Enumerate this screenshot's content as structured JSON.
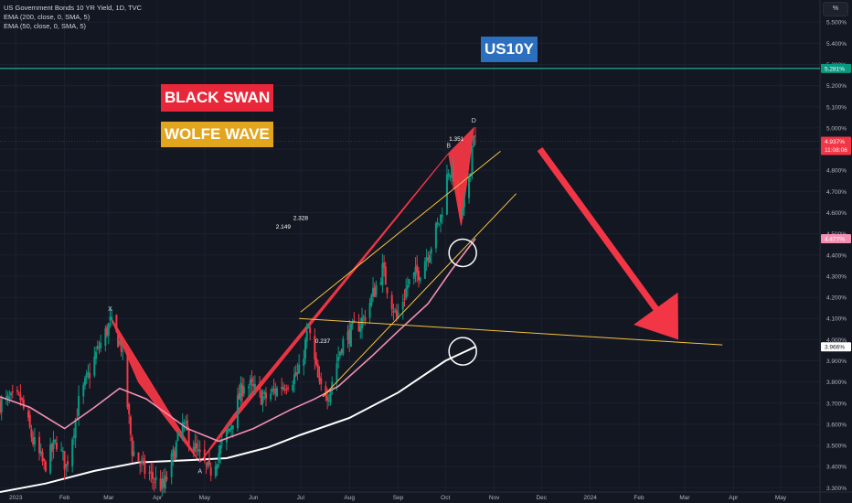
{
  "header": {
    "title": "US Government Bonds 10 YR Yield, 1D, TVC",
    "indicator1": "EMA (200, close, 0, SMA, 5)",
    "indicator2": "EMA (50, close, 0, SMA, 5)",
    "scale_mode": "%"
  },
  "annotations": {
    "us10y": "US10Y",
    "black_swan": "BLACK SWAN",
    "wolfe_wave": "WOLFE WAVE",
    "pivots": [
      {
        "label": "X",
        "date": "2023-03-02",
        "y": 4.11
      },
      {
        "label": "A",
        "date": "2023-04-28",
        "y": 3.42
      },
      {
        "label": "B",
        "date": "2023-10-03",
        "y": 4.88
      },
      {
        "label": "D",
        "date": "2023-10-19",
        "y": 5.0
      }
    ],
    "fib_labels": [
      {
        "text": "2.328",
        "date": "2023-07-01",
        "y": 4.565
      },
      {
        "text": "2.149",
        "date": "2023-06-20",
        "y": 4.525
      },
      {
        "text": "1.351",
        "date": "2023-10-08",
        "y": 4.94
      },
      {
        "text": "0.237",
        "date": "2023-07-15",
        "y": 3.985
      }
    ]
  },
  "price_labels": {
    "horizontal_line": {
      "value": 5.281,
      "text": "5.281%",
      "color": "#089981"
    },
    "current": {
      "value": 4.937,
      "text": "4.937%",
      "countdown": "11:08:06",
      "color": "#f23645"
    },
    "ema50": {
      "value": 4.477,
      "text": "4.477%",
      "color": "#f48fb1"
    },
    "ema200": {
      "value": 3.966,
      "text": "3.966%",
      "color": "#ffffff"
    }
  },
  "colors": {
    "background": "#131722",
    "up_candle": "#089981",
    "down_candle": "#f23645",
    "ema50": "#f48fb1",
    "ema200": "#ffffff",
    "black_swan_fill": "#f23645",
    "wolfe_lines": "#f5c242",
    "arrow": "#f23645"
  },
  "chart_data": {
    "type": "candlestick",
    "symbol": "US10Y",
    "title": "US Government Bonds 10 YR Yield, 1D, TVC",
    "x_tick_labels": [
      "2023",
      "Feb",
      "Mar",
      "Apr",
      "May",
      "Jun",
      "Jul",
      "Aug",
      "Sep",
      "Oct",
      "Nov",
      "Dec",
      "2024",
      "Feb",
      "Mar",
      "Apr",
      "May"
    ],
    "x_tick_dates": [
      "2023-01-01",
      "2023-02-01",
      "2023-03-01",
      "2023-04-01",
      "2023-05-01",
      "2023-06-01",
      "2023-07-01",
      "2023-08-01",
      "2023-09-01",
      "2023-10-01",
      "2023-11-01",
      "2023-12-01",
      "2024-01-01",
      "2024-02-01",
      "2024-03-01",
      "2024-04-01",
      "2024-05-01"
    ],
    "x_range": [
      "2022-12-22",
      "2024-05-26"
    ],
    "y_ticks": [
      3.3,
      3.4,
      3.5,
      3.6,
      3.7,
      3.8,
      3.9,
      4.0,
      4.1,
      4.2,
      4.3,
      4.4,
      4.5,
      4.6,
      4.7,
      4.8,
      4.9,
      5.0,
      5.1,
      5.2,
      5.3,
      5.4,
      5.5
    ],
    "y_tick_labels": [
      "3.300%",
      "3.400%",
      "3.500%",
      "3.600%",
      "3.700%",
      "3.800%",
      "3.900%",
      "4.000%",
      "4.100%",
      "4.200%",
      "4.300%",
      "4.400%",
      "4.500%",
      "4.600%",
      "4.700%",
      "4.800%",
      "4.900%",
      "5.000%",
      "5.100%",
      "5.200%",
      "5.300%",
      "5.400%",
      "5.500%"
    ],
    "ylim": [
      3.28,
      5.57
    ],
    "y_unit": "%",
    "ohlc_anchor_closes": [
      [
        "2022-12-22",
        3.7
      ],
      [
        "2023-01-04",
        3.72
      ],
      [
        "2023-01-12",
        3.52
      ],
      [
        "2023-01-19",
        3.4
      ],
      [
        "2023-01-27",
        3.52
      ],
      [
        "2023-02-02",
        3.4
      ],
      [
        "2023-02-10",
        3.7
      ],
      [
        "2023-02-21",
        3.93
      ],
      [
        "2023-03-02",
        4.08
      ],
      [
        "2023-03-09",
        3.97
      ],
      [
        "2023-03-16",
        3.48
      ],
      [
        "2023-03-24",
        3.38
      ],
      [
        "2023-04-05",
        3.3
      ],
      [
        "2023-04-17",
        3.6
      ],
      [
        "2023-04-28",
        3.44
      ],
      [
        "2023-05-04",
        3.37
      ],
      [
        "2023-05-17",
        3.58
      ],
      [
        "2023-05-26",
        3.8
      ],
      [
        "2023-06-08",
        3.72
      ],
      [
        "2023-06-22",
        3.8
      ],
      [
        "2023-06-30",
        3.84
      ],
      [
        "2023-07-06",
        4.05
      ],
      [
        "2023-07-13",
        3.77
      ],
      [
        "2023-07-19",
        3.75
      ],
      [
        "2023-07-27",
        3.98
      ],
      [
        "2023-08-04",
        4.05
      ],
      [
        "2023-08-10",
        4.1
      ],
      [
        "2023-08-22",
        4.33
      ],
      [
        "2023-08-31",
        4.1
      ],
      [
        "2023-09-07",
        4.26
      ],
      [
        "2023-09-15",
        4.33
      ],
      [
        "2023-09-22",
        4.45
      ],
      [
        "2023-09-28",
        4.58
      ],
      [
        "2023-10-03",
        4.81
      ],
      [
        "2023-10-06",
        4.78
      ],
      [
        "2023-10-11",
        4.56
      ],
      [
        "2023-10-13",
        4.62
      ],
      [
        "2023-10-17",
        4.83
      ],
      [
        "2023-10-19",
        4.99
      ],
      [
        "2023-10-20",
        4.937
      ]
    ],
    "ema50_points": [
      [
        "2022-12-22",
        3.73
      ],
      [
        "2023-01-10",
        3.68
      ],
      [
        "2023-02-01",
        3.58
      ],
      [
        "2023-02-20",
        3.68
      ],
      [
        "2023-03-08",
        3.77
      ],
      [
        "2023-03-25",
        3.72
      ],
      [
        "2023-04-20",
        3.58
      ],
      [
        "2023-05-10",
        3.52
      ],
      [
        "2023-06-01",
        3.58
      ],
      [
        "2023-06-25",
        3.67
      ],
      [
        "2023-07-10",
        3.72
      ],
      [
        "2023-07-25",
        3.78
      ],
      [
        "2023-08-15",
        3.92
      ],
      [
        "2023-09-01",
        4.04
      ],
      [
        "2023-09-20",
        4.17
      ],
      [
        "2023-10-05",
        4.33
      ],
      [
        "2023-10-20",
        4.477
      ]
    ],
    "ema200_points": [
      [
        "2022-12-22",
        3.28
      ],
      [
        "2023-01-20",
        3.32
      ],
      [
        "2023-02-20",
        3.38
      ],
      [
        "2023-03-20",
        3.42
      ],
      [
        "2023-04-20",
        3.43
      ],
      [
        "2023-05-15",
        3.44
      ],
      [
        "2023-06-10",
        3.49
      ],
      [
        "2023-07-01",
        3.55
      ],
      [
        "2023-08-01",
        3.63
      ],
      [
        "2023-09-01",
        3.75
      ],
      [
        "2023-10-01",
        3.9
      ],
      [
        "2023-10-20",
        3.966
      ]
    ],
    "black_swan": {
      "xa_triangle": [
        [
          "2023-03-02",
          4.11
        ],
        [
          "2023-04-28",
          3.42
        ],
        [
          "2023-03-20",
          3.8
        ]
      ],
      "ab_triangle": [
        [
          "2023-04-28",
          3.42
        ],
        [
          "2023-10-03",
          4.88
        ],
        [
          "2023-05-20",
          3.65
        ]
      ],
      "bd_triangle": [
        [
          "2023-10-03",
          4.88
        ],
        [
          "2023-10-19",
          5.0
        ],
        [
          "2023-10-11",
          4.54
        ]
      ]
    },
    "wolfe_wave_lines": [
      [
        [
          "2023-07-01",
          4.13
        ],
        [
          "2023-11-05",
          4.89
        ]
      ],
      [
        [
          "2023-07-15",
          3.73
        ],
        [
          "2023-11-15",
          4.69
        ]
      ],
      [
        [
          "2023-06-30",
          4.1
        ],
        [
          "2024-03-25",
          3.975
        ]
      ]
    ],
    "circles": [
      [
        "2023-10-12",
        4.41
      ],
      [
        "2023-10-12",
        3.945
      ]
    ],
    "arrow": {
      "from": [
        "2023-11-30",
        4.9
      ],
      "to": [
        "2024-02-26",
        4.0
      ]
    }
  }
}
